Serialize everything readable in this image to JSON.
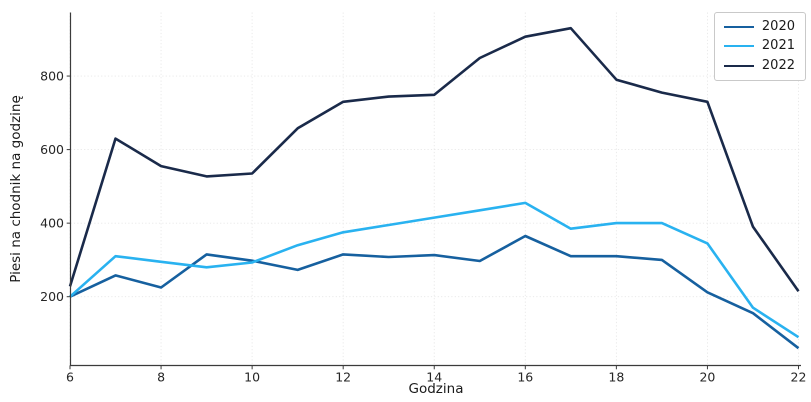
{
  "figure": {
    "background": "#ffffff",
    "spine_color": "#3b3b3b",
    "tick_color": "#3b3b3b",
    "grid_color": "#e7e7e7",
    "text_color": "#262626"
  },
  "chart_data": {
    "type": "line",
    "title": "",
    "xlabel": "Godzina",
    "ylabel": "Piesi na chodnik na godzinę",
    "x": [
      6,
      7,
      8,
      9,
      10,
      11,
      12,
      13,
      14,
      15,
      16,
      17,
      18,
      19,
      20,
      21,
      22
    ],
    "series": [
      {
        "name": "2020",
        "color": "#16609f",
        "values": [
          200,
          258,
          225,
          315,
          298,
          273,
          315,
          308,
          313,
          297,
          365,
          310,
          310,
          300,
          212,
          155,
          60
        ]
      },
      {
        "name": "2021",
        "color": "#29b2f0",
        "values": [
          200,
          310,
          295,
          280,
          293,
          340,
          375,
          395,
          415,
          435,
          455,
          385,
          400,
          400,
          345,
          170,
          90
        ]
      },
      {
        "name": "2022",
        "color": "#1a2a4a",
        "values": [
          228,
          630,
          555,
          527,
          535,
          658,
          730,
          744,
          749,
          849,
          907,
          930,
          790,
          755,
          730,
          390,
          215
        ]
      }
    ],
    "xticks": [
      6,
      8,
      10,
      12,
      14,
      16,
      18,
      20,
      22
    ],
    "yticks": [
      200,
      400,
      600,
      800
    ],
    "xlim": [
      6,
      22
    ],
    "ylim": [
      10,
      970
    ],
    "grid": true,
    "legend": {
      "position": "top-right",
      "entries": [
        "2020",
        "2021",
        "2022"
      ]
    }
  }
}
